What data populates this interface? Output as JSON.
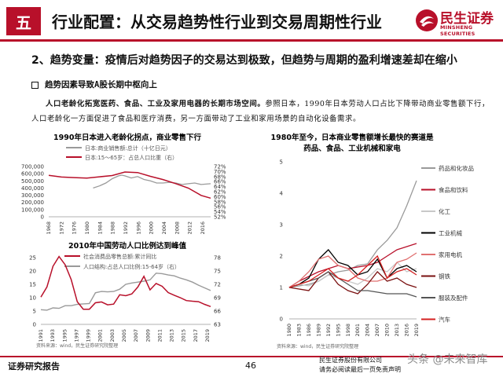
{
  "header": {
    "section_number": "五",
    "title": "行业配置：从交易趋势性行业到交易周期性行业",
    "logo_cn": "民生证券",
    "logo_en": "MINSHENG SECURITIES"
  },
  "subheading": "2、趋势变量：疫情后对趋势因子的交易达到极致，但趋势与周期的盈利增速差却在缩小",
  "bullet": "趋势因素导致A股长期中枢向上",
  "paragraph": {
    "bold": "人口老龄化拓宽医药、食品、工业及家用电器的长期市场空间。",
    "normal": "参照日本，1990年日本劳动人口占比下降带动商业零售额下行，人口老龄化一方面促进了食品和医疗消费，另一方面带动了工业和家用场景的自动化设备需求。"
  },
  "chart1": {
    "title": "1990年日本进入老龄化拐点，商业零售下行",
    "legend": [
      "日本:商业销售额:总计（十亿日元）",
      "日本:15～65岁：占总人口比重（右）"
    ],
    "y_left_ticks": [
      "700,000",
      "600,000",
      "500,000",
      "400,000",
      "300,000",
      "200,000",
      "100,000",
      "0"
    ],
    "y_right_ticks": [
      "72%",
      "70%",
      "68%",
      "66%",
      "64%",
      "62%",
      "60%",
      "58%",
      "56%",
      "54%",
      "52%"
    ],
    "x_ticks": [
      "1968",
      "1972",
      "1976",
      "1980",
      "1984",
      "1988",
      "1992",
      "1996",
      "2000",
      "2004",
      "2008",
      "2012",
      "2016"
    ]
  },
  "chart2": {
    "title": "2010年中国劳动人口比例达到峰值",
    "legend": [
      "社会消费品零售总额:累计同比",
      "人口结构:占总人口比例:15-64岁（右）"
    ],
    "y_left_ticks": [
      "25",
      "20",
      "15",
      "10",
      "5",
      "0"
    ],
    "y_right_ticks": [
      "78",
      "75",
      "72",
      "69",
      "66",
      "63"
    ],
    "x_ticks": [
      "1991",
      "1993",
      "1995",
      "1997",
      "1999",
      "2001",
      "2003",
      "2005",
      "2007",
      "2009",
      "2011",
      "2013",
      "2015",
      "2017",
      "2019"
    ],
    "source": "资料来源：wind，民生证券研究院整理"
  },
  "chart3": {
    "title_line1": "1980年至今，日本商业零售额增长最快的赛道是",
    "title_line2": "药品、食品、工业机械和家电",
    "y_ticks": [
      "5",
      "4",
      "3",
      "2",
      "1",
      "0"
    ],
    "x_ticks": [
      "1980",
      "1983",
      "1986",
      "1989",
      "1992",
      "1995",
      "1998",
      "2001",
      "2004",
      "2007",
      "2010",
      "2013",
      "2016",
      "2019"
    ],
    "legend": [
      "药品和化妆品",
      "食品和饮料",
      "化工",
      "工业机械",
      "家用电机",
      "钢铁",
      "服装及配件",
      "汽车"
    ],
    "source": "资料来源：wind，民生证券研究院整理"
  },
  "chart_data": [
    {
      "type": "line",
      "title": "1990年日本进入老龄化拐点，商业零售下行",
      "x": [
        1968,
        1972,
        1976,
        1980,
        1984,
        1988,
        1992,
        1996,
        2000,
        2004,
        2008,
        2012,
        2016,
        2019
      ],
      "series": [
        {
          "name": "日本:商业销售额:总计（十亿日元）",
          "axis": "left",
          "color": "#9a9a9a",
          "x": [
            1982,
            1984,
            1986,
            1988,
            1990,
            1991,
            1992,
            1994,
            1996,
            1998,
            2000,
            2002,
            2004,
            2006,
            2008,
            2010,
            2012,
            2014,
            2016,
            2019
          ],
          "values": [
            400000,
            430000,
            470000,
            530000,
            570000,
            580000,
            570000,
            540000,
            560000,
            520000,
            500000,
            470000,
            470000,
            480000,
            470000,
            450000,
            460000,
            470000,
            450000,
            460000
          ]
        },
        {
          "name": "日本:15～65岁：占总人口比重（右）",
          "axis": "right",
          "color": "#b8102a",
          "values": [
            68.5,
            67.8,
            67.6,
            67.4,
            67.9,
            68.4,
            69.8,
            69.6,
            68.1,
            66.8,
            65.2,
            63.4,
            60.5,
            59.4
          ]
        }
      ],
      "ylim_left": [
        0,
        700000
      ],
      "ylim_right": [
        52,
        72
      ]
    },
    {
      "type": "line",
      "title": "2010年中国劳动人口比例达到峰值",
      "x": [
        1991,
        1992,
        1993,
        1994,
        1995,
        1996,
        1997,
        1998,
        1999,
        2000,
        2001,
        2002,
        2003,
        2004,
        2005,
        2006,
        2007,
        2008,
        2009,
        2010,
        2011,
        2012,
        2013,
        2014,
        2015,
        2016,
        2017,
        2018,
        2019
      ],
      "series": [
        {
          "name": "社会消费品零售总额:累计同比",
          "axis": "left",
          "color": "#b8102a",
          "values": [
            12.3,
            16.8,
            26.1,
            30.5,
            26.8,
            20.1,
            10.2,
            6.8,
            6.8,
            9.7,
            10.1,
            8.8,
            9.1,
            13.3,
            12.9,
            13.7,
            16.8,
            21.6,
            15.5,
            18.4,
            17.1,
            14.3,
            13.1,
            12.0,
            10.7,
            10.4,
            10.2,
            9.0,
            8.0
          ]
        },
        {
          "name": "人口结构:占总人口比例:15-64岁（右）",
          "axis": "right",
          "color": "#9a9a9a",
          "values": [
            66.3,
            66.2,
            66.7,
            66.6,
            67.2,
            67.2,
            67.5,
            67.6,
            67.7,
            70.1,
            70.4,
            70.3,
            70.4,
            70.9,
            72.0,
            72.3,
            72.5,
            72.7,
            73.0,
            74.5,
            74.4,
            74.1,
            73.9,
            73.4,
            73.0,
            72.5,
            71.8,
            71.2,
            70.6
          ]
        }
      ],
      "ylim_left": [
        0,
        30
      ],
      "ylim_right": [
        63,
        78
      ]
    },
    {
      "type": "line",
      "title": "1980年至今，日本商业零售额增长最快的赛道是 药品、食品、工业机械和家电",
      "x": [
        1980,
        1983,
        1986,
        1989,
        1992,
        1995,
        1998,
        2001,
        2004,
        2007,
        2010,
        2013,
        2016,
        2019
      ],
      "ylim": [
        0,
        5
      ],
      "series": [
        {
          "name": "药品和化妆品",
          "color": "#9a9a9a",
          "values": [
            1.0,
            1.05,
            1.1,
            1.2,
            1.4,
            1.5,
            1.55,
            1.7,
            1.75,
            2.2,
            2.5,
            2.9,
            3.6,
            4.4
          ]
        },
        {
          "name": "食品和饮料",
          "color": "#b8102a",
          "values": [
            1.0,
            1.2,
            1.35,
            1.5,
            1.6,
            1.7,
            1.6,
            1.65,
            1.7,
            1.8,
            2.0,
            2.2,
            2.3,
            2.4
          ]
        },
        {
          "name": "化工",
          "color": "#c8c8c8",
          "values": [
            1.0,
            1.1,
            1.05,
            1.2,
            1.4,
            1.3,
            1.2,
            1.1,
            1.3,
            1.6,
            1.5,
            1.8,
            1.5,
            1.6
          ]
        },
        {
          "name": "工业机械",
          "color": "#000000",
          "values": [
            1.0,
            1.1,
            1.3,
            1.9,
            2.2,
            1.8,
            1.7,
            1.4,
            1.5,
            1.9,
            1.3,
            1.6,
            1.7,
            1.5
          ]
        },
        {
          "name": "家用电机",
          "color": "#e07070",
          "values": [
            1.0,
            1.2,
            1.5,
            1.9,
            2.0,
            1.7,
            1.6,
            1.3,
            1.2,
            1.2,
            1.3,
            1.8,
            1.9,
            2.1
          ]
        },
        {
          "name": "钢铁",
          "color": "#7a1010",
          "values": [
            1.0,
            0.95,
            0.9,
            1.3,
            1.5,
            1.1,
            0.9,
            0.8,
            1.1,
            1.5,
            1.2,
            1.3,
            1.1,
            1.0
          ]
        },
        {
          "name": "服装及配件",
          "color": "#555555",
          "values": [
            1.0,
            1.1,
            1.2,
            1.3,
            1.5,
            1.3,
            1.1,
            0.9,
            0.9,
            0.85,
            0.8,
            0.8,
            0.8,
            0.7
          ]
        },
        {
          "name": "汽车",
          "color": "#d42020",
          "values": [
            1.0,
            1.1,
            1.2,
            1.4,
            1.6,
            1.3,
            1.2,
            1.4,
            1.7,
            2.0,
            1.3,
            1.5,
            1.6,
            1.4
          ]
        }
      ]
    }
  ],
  "footer": {
    "left": "证券研究报告",
    "page_number": "46",
    "right_line1": "民生证券股份有限公司",
    "right_line2": "请务必阅读最后一页免责声明",
    "watermark": "头条 @未来智库"
  },
  "colors": {
    "brand_red": "#b8102a",
    "gray": "#9a9a9a"
  }
}
